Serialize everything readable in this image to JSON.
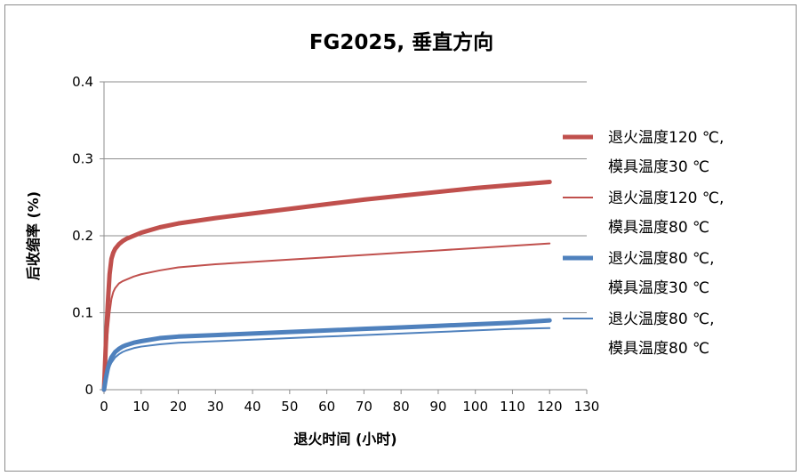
{
  "chart_data": {
    "type": "line",
    "title": "FG2025, 垂直方向",
    "xlabel": "退火时间 (小时)",
    "ylabel": "后收缩率 (%)",
    "xlim": [
      0,
      130
    ],
    "ylim": [
      0,
      0.4
    ],
    "xticks": [
      0,
      10,
      20,
      30,
      40,
      50,
      60,
      70,
      80,
      90,
      100,
      110,
      120,
      130
    ],
    "yticks": [
      0,
      0.1,
      0.2,
      0.3,
      0.4
    ],
    "ytick_labels": [
      "0",
      "0.1",
      "0.2",
      "0.3",
      "0.4"
    ],
    "grid": "horizontal",
    "legend_position": "right",
    "series": [
      {
        "name_lines": [
          "退火温度120 ℃,",
          "模具温度30 ℃"
        ],
        "color": "#c0504d",
        "style": "thick",
        "x": [
          0,
          0.5,
          1,
          1.5,
          2,
          2.5,
          3,
          4,
          5,
          6,
          8,
          10,
          15,
          20,
          30,
          40,
          50,
          60,
          70,
          80,
          90,
          100,
          110,
          120
        ],
        "y": [
          0,
          0.06,
          0.11,
          0.15,
          0.17,
          0.178,
          0.183,
          0.189,
          0.193,
          0.196,
          0.2,
          0.204,
          0.211,
          0.216,
          0.223,
          0.229,
          0.235,
          0.241,
          0.247,
          0.252,
          0.257,
          0.262,
          0.266,
          0.27
        ]
      },
      {
        "name_lines": [
          "退火温度120 ℃,",
          "模具温度80 ℃"
        ],
        "color": "#c0504d",
        "style": "thin",
        "x": [
          0,
          0.5,
          1,
          1.5,
          2,
          2.5,
          3,
          4,
          5,
          6,
          8,
          10,
          15,
          20,
          30,
          40,
          50,
          60,
          70,
          80,
          90,
          100,
          110,
          120
        ],
        "y": [
          0,
          0.04,
          0.075,
          0.1,
          0.118,
          0.127,
          0.132,
          0.138,
          0.141,
          0.143,
          0.147,
          0.15,
          0.155,
          0.159,
          0.163,
          0.166,
          0.169,
          0.172,
          0.175,
          0.178,
          0.181,
          0.184,
          0.187,
          0.19
        ]
      },
      {
        "name_lines": [
          "退火温度80 ℃,",
          "模具温度30 ℃"
        ],
        "color": "#4f81bd",
        "style": "thick",
        "x": [
          0,
          0.5,
          1,
          1.5,
          2,
          3,
          4,
          5,
          6,
          8,
          10,
          15,
          20,
          30,
          40,
          50,
          60,
          70,
          80,
          90,
          100,
          110,
          120
        ],
        "y": [
          0,
          0.015,
          0.027,
          0.036,
          0.042,
          0.049,
          0.053,
          0.056,
          0.058,
          0.061,
          0.063,
          0.067,
          0.069,
          0.071,
          0.073,
          0.075,
          0.077,
          0.079,
          0.081,
          0.083,
          0.085,
          0.087,
          0.09
        ]
      },
      {
        "name_lines": [
          "退火温度80 ℃,",
          "模具温度80 ℃"
        ],
        "color": "#4f81bd",
        "style": "thin",
        "x": [
          0,
          0.5,
          1,
          1.5,
          2,
          3,
          4,
          5,
          6,
          8,
          10,
          15,
          20,
          30,
          40,
          50,
          60,
          70,
          80,
          90,
          100,
          110,
          120
        ],
        "y": [
          0,
          0.012,
          0.022,
          0.03,
          0.035,
          0.042,
          0.046,
          0.049,
          0.051,
          0.054,
          0.056,
          0.059,
          0.061,
          0.063,
          0.065,
          0.067,
          0.069,
          0.071,
          0.073,
          0.075,
          0.077,
          0.079,
          0.08
        ]
      }
    ]
  }
}
